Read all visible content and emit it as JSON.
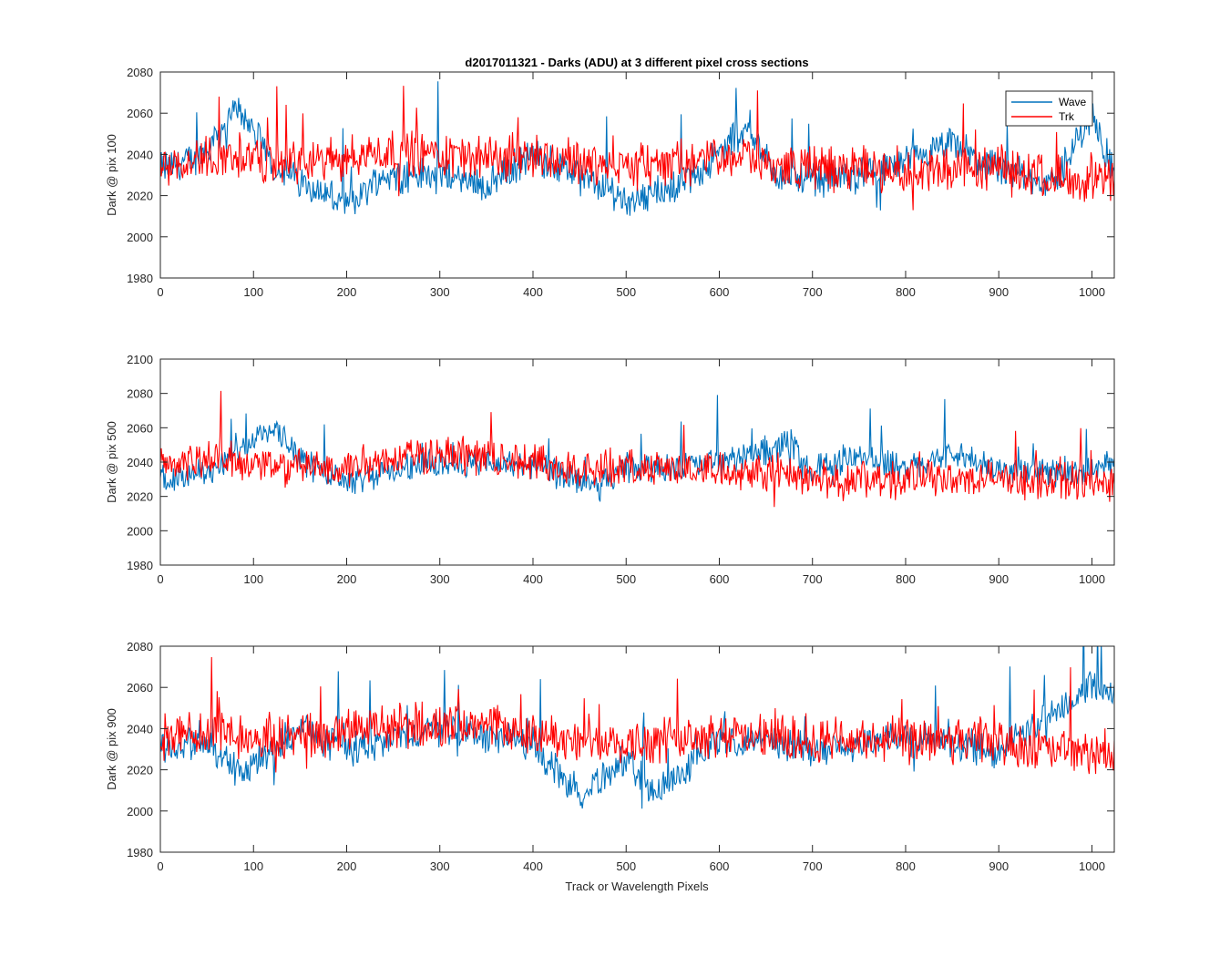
{
  "figure": {
    "title": "d2017011321 - Darks (ADU) at 3 different pixel cross sections",
    "xlabel": "Track or Wavelength Pixels"
  },
  "colors": {
    "wave": "#0072BD",
    "trk": "#FF0000"
  },
  "legend": {
    "placement": "top-right of first subplot",
    "entries": [
      "Wave",
      "Trk"
    ]
  },
  "chart_data": [
    {
      "type": "line",
      "ylabel": "Dark @ pix 100",
      "xlim": [
        0,
        1024
      ],
      "ylim": [
        1980,
        2080
      ],
      "xticks": [
        "0",
        "100",
        "200",
        "300",
        "400",
        "500",
        "600",
        "700",
        "800",
        "900",
        "1000"
      ],
      "yticks": [
        "1980",
        "2000",
        "2020",
        "2040",
        "2060",
        "2080"
      ],
      "x": [
        0,
        40,
        85,
        120,
        200,
        240,
        300,
        350,
        400,
        450,
        500,
        560,
        600,
        630,
        660,
        700,
        760,
        800,
        850,
        900,
        960,
        1000,
        1024
      ],
      "series": [
        {
          "name": "Wave",
          "values": [
            2033,
            2038,
            2063,
            2035,
            2015,
            2030,
            2030,
            2025,
            2040,
            2030,
            2018,
            2025,
            2040,
            2055,
            2030,
            2028,
            2030,
            2035,
            2045,
            2032,
            2025,
            2060,
            2030
          ]
        },
        {
          "name": "Trk",
          "values": [
            2035,
            2038,
            2040,
            2036,
            2038,
            2042,
            2040,
            2038,
            2040,
            2036,
            2034,
            2036,
            2038,
            2040,
            2034,
            2034,
            2032,
            2032,
            2033,
            2033,
            2030,
            2028,
            2026
          ]
        }
      ]
    },
    {
      "type": "line",
      "ylabel": "Dark @ pix 500",
      "xlim": [
        0,
        1024
      ],
      "ylim": [
        1980,
        2100
      ],
      "xticks": [
        "0",
        "100",
        "200",
        "300",
        "400",
        "500",
        "600",
        "700",
        "800",
        "900",
        "1000"
      ],
      "yticks": [
        "1980",
        "2000",
        "2020",
        "2040",
        "2060",
        "2080",
        "2100"
      ],
      "x": [
        0,
        60,
        120,
        160,
        200,
        300,
        400,
        470,
        500,
        600,
        680,
        700,
        750,
        800,
        850,
        900,
        1000,
        1024
      ],
      "series": [
        {
          "name": "Wave",
          "values": [
            2030,
            2035,
            2062,
            2038,
            2030,
            2040,
            2038,
            2025,
            2035,
            2040,
            2050,
            2035,
            2045,
            2035,
            2045,
            2035,
            2035,
            2040
          ]
        },
        {
          "name": "Trk",
          "values": [
            2038,
            2042,
            2038,
            2036,
            2038,
            2045,
            2040,
            2036,
            2036,
            2036,
            2034,
            2030,
            2030,
            2030,
            2030,
            2030,
            2028,
            2028
          ]
        }
      ]
    },
    {
      "type": "line",
      "ylabel": "Dark @ pix 900",
      "xlim": [
        0,
        1024
      ],
      "ylim": [
        1980,
        2080
      ],
      "xticks": [
        "0",
        "100",
        "200",
        "300",
        "400",
        "500",
        "600",
        "700",
        "800",
        "900",
        "1000"
      ],
      "yticks": [
        "1980",
        "2000",
        "2020",
        "2040",
        "2060",
        "2080"
      ],
      "x": [
        0,
        50,
        90,
        150,
        200,
        300,
        400,
        450,
        500,
        530,
        560,
        600,
        700,
        800,
        900,
        950,
        1000,
        1024
      ],
      "series": [
        {
          "name": "Wave",
          "values": [
            2032,
            2032,
            2018,
            2040,
            2030,
            2040,
            2032,
            2008,
            2025,
            2008,
            2020,
            2035,
            2030,
            2035,
            2030,
            2045,
            2062,
            2055
          ]
        },
        {
          "name": "Trk",
          "values": [
            2036,
            2040,
            2036,
            2036,
            2040,
            2042,
            2038,
            2032,
            2034,
            2034,
            2036,
            2038,
            2034,
            2034,
            2033,
            2030,
            2028,
            2025
          ]
        }
      ]
    }
  ]
}
